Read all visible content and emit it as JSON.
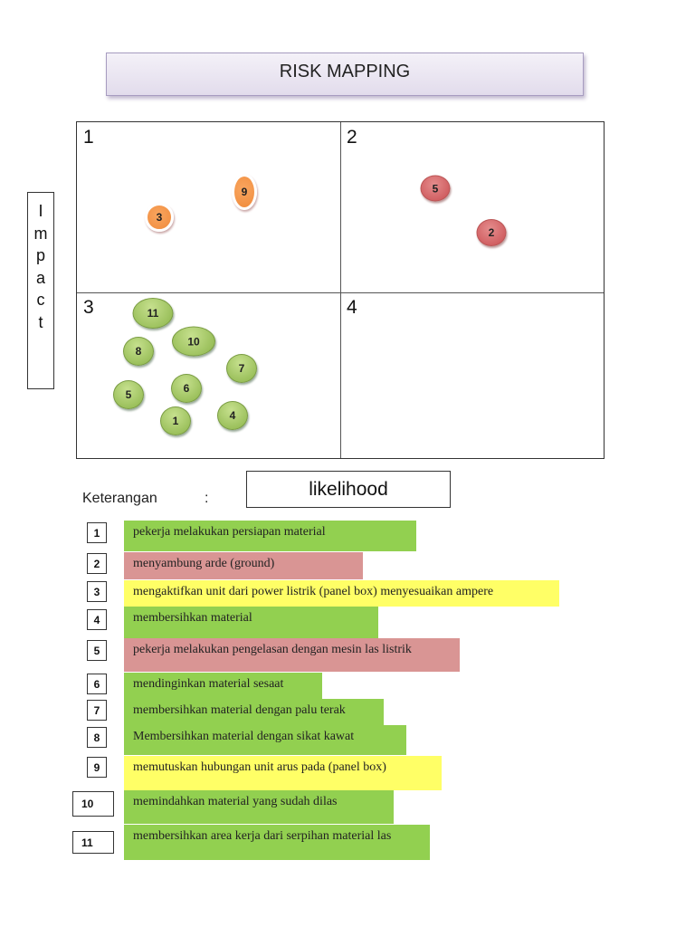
{
  "title": "RISK MAPPING",
  "impact_label": [
    "I",
    "m",
    "p",
    "a",
    "c",
    "t"
  ],
  "likelihood_label": "likelihood",
  "quadrants": [
    "1",
    "2",
    "3",
    "4"
  ],
  "colors": {
    "green": "#92d050",
    "red": "#d99594",
    "yellow": "#ffff66",
    "orange": "#f79646"
  },
  "bubbles": {
    "q1": [
      "3",
      "9"
    ],
    "q2": [
      "5",
      "2"
    ],
    "q3": [
      "11",
      "10",
      "8",
      "7",
      "6",
      "5",
      "1",
      "4"
    ]
  },
  "legend": {
    "heading": "Keterangan",
    "colon": ":",
    "items": [
      {
        "no": "1",
        "text": "pekerja melakukan persiapan material",
        "color": "green"
      },
      {
        "no": "2",
        "text": "menyambung arde (ground)",
        "color": "red"
      },
      {
        "no": "3",
        "text": "mengaktifkan unit dari power listrik (panel box) menyesuaikan ampere",
        "color": "yellow"
      },
      {
        "no": "4",
        "text": "membersihkan material",
        "color": "green"
      },
      {
        "no": "5",
        "text": "pekerja melakukan pengelasan dengan mesin las listrik",
        "color": "red"
      },
      {
        "no": "6",
        "text": "mendinginkan material sesaat",
        "color": "green"
      },
      {
        "no": "7",
        "text": "membersihkan material dengan palu terak",
        "color": "green"
      },
      {
        "no": "8",
        "text": "Membersihkan material dengan sikat kawat",
        "color": "green"
      },
      {
        "no": "9",
        "text": "memutuskan hubungan unit arus pada (panel box)",
        "color": "yellow"
      },
      {
        "no": "10",
        "text": "memindahkan material yang sudah dilas",
        "color": "green"
      },
      {
        "no": "11",
        "text": "membersihkan area kerja dari serpihan material las",
        "color": "green"
      }
    ]
  }
}
